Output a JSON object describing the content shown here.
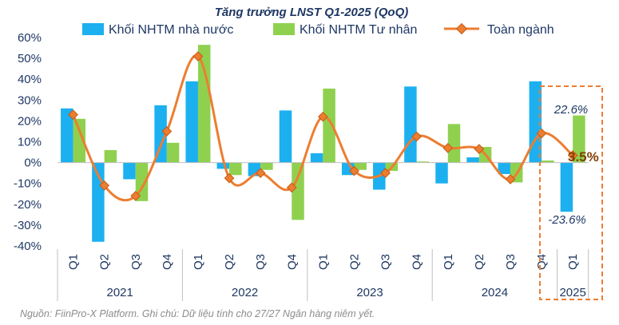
{
  "chart_data": {
    "type": "bar",
    "title": "Tăng trưởng LNST Q1-2025 (QoQ)",
    "quarters": [
      "Q1",
      "Q2",
      "Q3",
      "Q4",
      "Q1",
      "Q2",
      "Q3",
      "Q4",
      "Q1",
      "Q2",
      "Q3",
      "Q4",
      "Q1",
      "Q2",
      "Q3",
      "Q4",
      "Q1"
    ],
    "years": [
      {
        "label": "2021",
        "span": 4
      },
      {
        "label": "2022",
        "span": 4
      },
      {
        "label": "2023",
        "span": 4
      },
      {
        "label": "2024",
        "span": 4
      },
      {
        "label": "2025",
        "span": 1
      }
    ],
    "series": [
      {
        "name": "Khối NHTM nhà nước",
        "kind": "bar",
        "color": "#1cb0f0",
        "values": [
          26,
          -38,
          -8,
          27.5,
          39,
          -3,
          -6.5,
          25,
          4.5,
          -6,
          -13,
          36.5,
          -10,
          2.5,
          -5.5,
          39,
          -23.6
        ]
      },
      {
        "name": "Khối NHTM Tư nhân",
        "kind": "bar",
        "color": "#8fd14f",
        "values": [
          21,
          6,
          -18.5,
          9.5,
          56.5,
          -6,
          -3.5,
          -27.5,
          35.5,
          -3.5,
          -4,
          0.5,
          18.5,
          7.5,
          -9.5,
          1,
          22.6
        ]
      },
      {
        "name": "Toàn ngành",
        "kind": "line",
        "color": "#ed7d31",
        "values": [
          23,
          -11,
          -16,
          15,
          51,
          -7.5,
          -5,
          -12,
          22,
          -4,
          -5,
          12.5,
          7,
          6.5,
          -8,
          14,
          3.5
        ]
      }
    ],
    "ylim": [
      -40,
      60
    ],
    "yticks": [
      "60%",
      "50%",
      "40%",
      "30%",
      "20%",
      "10%",
      "0%",
      "-10%",
      "-20%",
      "-30%",
      "-40%"
    ],
    "grid": false,
    "legend": "top",
    "annotations": {
      "private_last": "22.6%",
      "state_last": "-23.6%",
      "total_last": "3.5%"
    }
  },
  "source_note": "Nguồn: FiinPro-X Platform. Ghi chú: Dữ liệu tính cho 27/27 Ngân hàng niêm yết."
}
